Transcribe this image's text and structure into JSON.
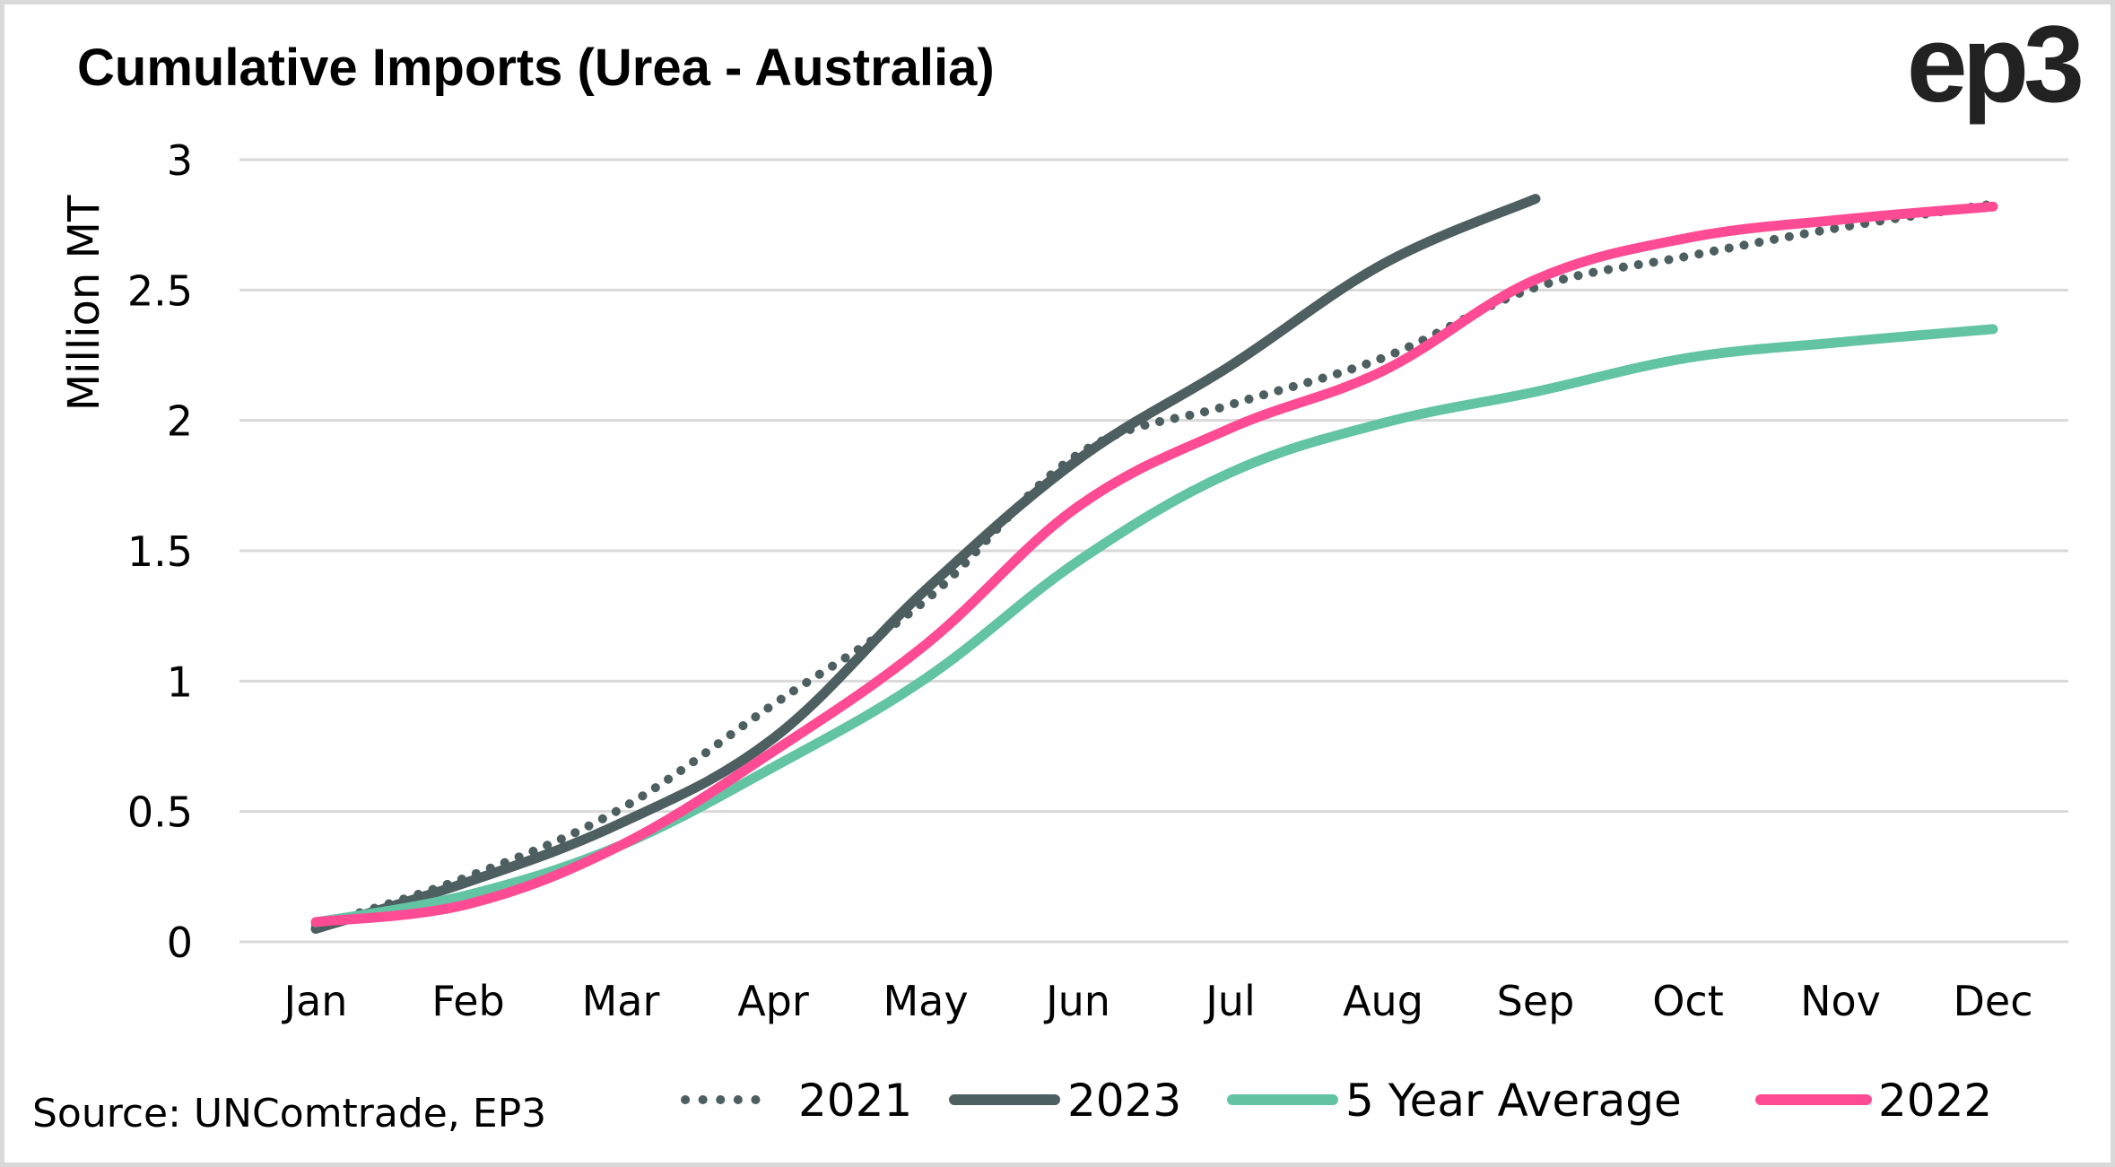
{
  "header": {
    "title": "Cumulative Imports (Urea - Australia)",
    "logo": "ep3"
  },
  "footer": {
    "source": "Source: UNComtrade, EP3"
  },
  "chart_data": {
    "type": "line",
    "title": "Cumulative Imports (Urea - Australia)",
    "xlabel": "",
    "ylabel": "Million MT",
    "categories": [
      "Jan",
      "Feb",
      "Mar",
      "Apr",
      "May",
      "Jun",
      "Jul",
      "Aug",
      "Sep",
      "Oct",
      "Nov",
      "Dec"
    ],
    "ylim": [
      0,
      3
    ],
    "yticks": [
      0,
      0.5,
      1,
      1.5,
      2,
      2.5,
      3
    ],
    "ytick_labels": [
      "0",
      "0.5",
      "1",
      "1.5",
      "2",
      "2.5",
      "3"
    ],
    "grid": "horizontal",
    "legend_position": "bottom",
    "series": [
      {
        "name": "2021",
        "style": "dotted",
        "color": "#4d5f60",
        "values": [
          0.06,
          0.25,
          0.51,
          0.91,
          1.31,
          1.87,
          2.06,
          2.24,
          2.51,
          2.63,
          2.74,
          2.83
        ]
      },
      {
        "name": "2023",
        "style": "solid",
        "color": "#4d5f60",
        "values": [
          0.05,
          0.23,
          0.455,
          0.78,
          1.35,
          1.85,
          2.21,
          2.6,
          2.85,
          null,
          null,
          null
        ]
      },
      {
        "name": "5 Year Average",
        "style": "solid",
        "color": "#63c4a4",
        "values": [
          0.075,
          0.18,
          0.37,
          0.67,
          1.01,
          1.46,
          1.8,
          1.99,
          2.11,
          2.24,
          2.3,
          2.35
        ]
      },
      {
        "name": "2022",
        "style": "solid",
        "color": "#ff4b94",
        "values": [
          0.076,
          0.145,
          0.37,
          0.73,
          1.14,
          1.67,
          1.97,
          2.19,
          2.54,
          2.7,
          2.77,
          2.82
        ]
      }
    ],
    "legend_order": [
      "2021",
      "2023",
      "5 Year Average",
      "2022"
    ],
    "source": "Source: UNComtrade, EP3"
  }
}
